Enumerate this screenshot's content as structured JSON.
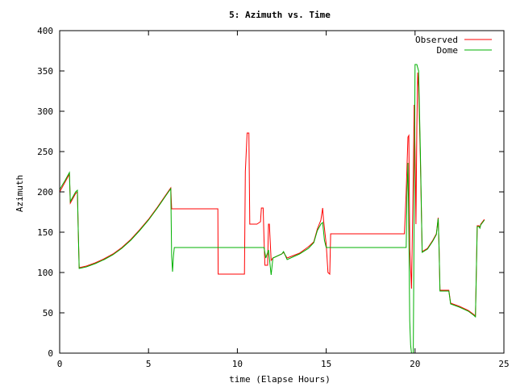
{
  "chart_data": {
    "type": "line",
    "title": "5: Azimuth vs. Time",
    "xlabel": "time (Elapse Hours)",
    "ylabel": "Azimuth",
    "xlim": [
      0,
      25
    ],
    "ylim": [
      0,
      400
    ],
    "xticks": [
      0,
      5,
      10,
      15,
      20,
      25
    ],
    "yticks": [
      0,
      50,
      100,
      150,
      200,
      250,
      300,
      350,
      400
    ],
    "grid": false,
    "legend_position": "top-right",
    "series": [
      {
        "name": "Observed",
        "color": "#ff0000",
        "points": [
          [
            0,
            200
          ],
          [
            0.3,
            212
          ],
          [
            0.55,
            222
          ],
          [
            0.6,
            186
          ],
          [
            0.7,
            190
          ],
          [
            0.9,
            198
          ],
          [
            1.0,
            200
          ],
          [
            1.05,
            150
          ],
          [
            1.1,
            106
          ],
          [
            1.5,
            108
          ],
          [
            2.0,
            112
          ],
          [
            2.5,
            117
          ],
          [
            3.0,
            123
          ],
          [
            3.5,
            131
          ],
          [
            4.0,
            141
          ],
          [
            4.5,
            153
          ],
          [
            5.0,
            166
          ],
          [
            5.5,
            181
          ],
          [
            6.0,
            197
          ],
          [
            6.25,
            205
          ],
          [
            6.3,
            179
          ],
          [
            8.9,
            179
          ],
          [
            8.92,
            98
          ],
          [
            10.4,
            98
          ],
          [
            10.45,
            225
          ],
          [
            10.55,
            273
          ],
          [
            10.65,
            273
          ],
          [
            10.7,
            160
          ],
          [
            11.1,
            160
          ],
          [
            11.3,
            163
          ],
          [
            11.35,
            180
          ],
          [
            11.45,
            180
          ],
          [
            11.5,
            140
          ],
          [
            11.55,
            109
          ],
          [
            11.7,
            109
          ],
          [
            11.75,
            160
          ],
          [
            11.8,
            160
          ],
          [
            11.9,
            115
          ],
          [
            12.0,
            118
          ],
          [
            12.5,
            123
          ],
          [
            12.6,
            125
          ],
          [
            12.8,
            118
          ],
          [
            13.5,
            124
          ],
          [
            14.0,
            132
          ],
          [
            14.3,
            138
          ],
          [
            14.5,
            154
          ],
          [
            14.7,
            165
          ],
          [
            14.8,
            180
          ],
          [
            14.85,
            165
          ],
          [
            15.0,
            135
          ],
          [
            15.1,
            100
          ],
          [
            15.2,
            98
          ],
          [
            15.25,
            148
          ],
          [
            19.4,
            148
          ],
          [
            19.5,
            200
          ],
          [
            19.6,
            268
          ],
          [
            19.65,
            270
          ],
          [
            19.7,
            130
          ],
          [
            19.8,
            80
          ],
          [
            19.9,
            220
          ],
          [
            19.95,
            308
          ],
          [
            20.0,
            250
          ],
          [
            20.05,
            160
          ],
          [
            20.1,
            280
          ],
          [
            20.15,
            348
          ],
          [
            20.2,
            330
          ],
          [
            20.3,
            240
          ],
          [
            20.4,
            126
          ],
          [
            20.7,
            130
          ],
          [
            21.0,
            140
          ],
          [
            21.2,
            148
          ],
          [
            21.3,
            168
          ],
          [
            21.35,
            130
          ],
          [
            21.4,
            78
          ],
          [
            21.9,
            78
          ],
          [
            22.0,
            62
          ],
          [
            22.5,
            58
          ],
          [
            23.0,
            53
          ],
          [
            23.3,
            48
          ],
          [
            23.4,
            46
          ],
          [
            23.45,
            100
          ],
          [
            23.5,
            158
          ],
          [
            23.6,
            158
          ],
          [
            23.65,
            156
          ],
          [
            23.7,
            160
          ],
          [
            23.9,
            166
          ]
        ]
      },
      {
        "name": "Dome",
        "color": "#00b000",
        "points": [
          [
            0,
            203
          ],
          [
            0.3,
            214
          ],
          [
            0.55,
            224
          ],
          [
            0.6,
            188
          ],
          [
            0.7,
            192
          ],
          [
            0.9,
            200
          ],
          [
            1.0,
            202
          ],
          [
            1.05,
            150
          ],
          [
            1.1,
            105
          ],
          [
            1.5,
            107
          ],
          [
            2.0,
            111
          ],
          [
            2.5,
            116
          ],
          [
            3.0,
            122
          ],
          [
            3.5,
            130
          ],
          [
            4.0,
            140
          ],
          [
            4.5,
            152
          ],
          [
            5.0,
            165
          ],
          [
            5.5,
            180
          ],
          [
            6.0,
            196
          ],
          [
            6.25,
            204
          ],
          [
            6.3,
            120
          ],
          [
            6.35,
            101
          ],
          [
            6.4,
            120
          ],
          [
            6.45,
            131
          ],
          [
            11.4,
            131
          ],
          [
            11.5,
            131
          ],
          [
            11.6,
            118
          ],
          [
            11.75,
            128
          ],
          [
            11.8,
            118
          ],
          [
            11.9,
            97
          ],
          [
            12.0,
            118
          ],
          [
            12.5,
            123
          ],
          [
            12.6,
            126
          ],
          [
            12.8,
            116
          ],
          [
            13.5,
            123
          ],
          [
            14.0,
            130
          ],
          [
            14.3,
            137
          ],
          [
            14.5,
            152
          ],
          [
            14.7,
            160
          ],
          [
            14.8,
            162
          ],
          [
            14.9,
            140
          ],
          [
            15.0,
            131
          ],
          [
            19.5,
            131
          ],
          [
            19.55,
            200
          ],
          [
            19.6,
            236
          ],
          [
            19.65,
            150
          ],
          [
            19.7,
            40
          ],
          [
            19.75,
            10
          ],
          [
            19.8,
            0
          ],
          [
            19.9,
            0
          ],
          [
            19.95,
            180
          ],
          [
            20.0,
            358
          ],
          [
            20.1,
            358
          ],
          [
            20.2,
            350
          ],
          [
            20.3,
            250
          ],
          [
            20.4,
            125
          ],
          [
            20.7,
            129
          ],
          [
            21.0,
            139
          ],
          [
            21.2,
            147
          ],
          [
            21.3,
            167
          ],
          [
            21.35,
            130
          ],
          [
            21.4,
            77
          ],
          [
            21.9,
            77
          ],
          [
            22.0,
            61
          ],
          [
            22.5,
            57
          ],
          [
            23.0,
            52
          ],
          [
            23.3,
            47
          ],
          [
            23.4,
            45
          ],
          [
            23.45,
            100
          ],
          [
            23.5,
            157
          ],
          [
            23.6,
            157
          ],
          [
            23.65,
            155
          ],
          [
            23.7,
            159
          ],
          [
            23.9,
            165
          ]
        ]
      }
    ]
  }
}
